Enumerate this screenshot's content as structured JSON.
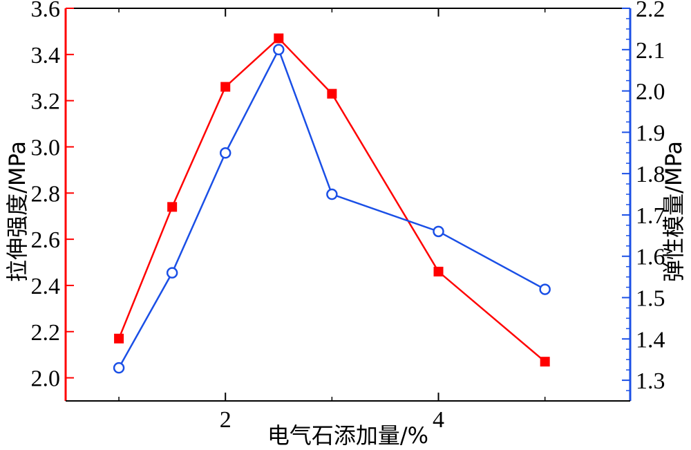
{
  "chart_data": {
    "type": "line",
    "xlabel": "电气石添加量/%",
    "ylabel_left": "拉伸强度/MPa",
    "ylabel_right": "弹性模量/MPa",
    "xlim": [
      0.5,
      5.8
    ],
    "ylim_left": [
      1.9,
      3.6
    ],
    "ylim_right": [
      1.25,
      2.2
    ],
    "x_ticks": [
      2,
      4
    ],
    "y_ticks_left": [
      "2.0",
      "2.2",
      "2.4",
      "2.6",
      "2.8",
      "3.0",
      "3.2",
      "3.4",
      "3.6"
    ],
    "y_ticks_right": [
      "1.3",
      "1.4",
      "1.5",
      "1.6",
      "1.7",
      "1.8",
      "1.9",
      "2.0",
      "2.1",
      "2.2"
    ],
    "grid": false,
    "left_axis_color": "#ff0000",
    "right_axis_color": "#1a4fe6",
    "series": [
      {
        "axis": "left",
        "marker": "filled-square",
        "color": "#ff0000",
        "x": [
          1,
          1.5,
          2,
          2.5,
          3,
          4,
          5
        ],
        "values": [
          2.17,
          2.74,
          3.26,
          3.47,
          3.23,
          2.46,
          2.07
        ]
      },
      {
        "axis": "right",
        "marker": "open-circle",
        "color": "#1a4fe6",
        "x": [
          1,
          1.5,
          2,
          2.5,
          3,
          4,
          5
        ],
        "values": [
          1.33,
          1.56,
          1.85,
          2.1,
          1.75,
          1.66,
          1.52
        ]
      }
    ]
  }
}
